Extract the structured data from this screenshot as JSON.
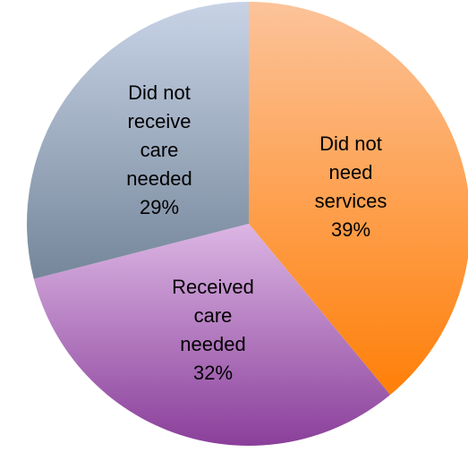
{
  "chart_data": {
    "type": "pie",
    "start_angle_deg": 0,
    "direction": "clockwise",
    "slices": [
      {
        "name": "Did not need services",
        "value": 39,
        "label_lines": [
          "Did not",
          "need",
          "services",
          "39%"
        ],
        "color_light": "#fcc39a",
        "color_dark": "#ff7f08"
      },
      {
        "name": "Received care needed",
        "value": 32,
        "label_lines": [
          "Received",
          "care",
          "needed",
          "32%"
        ],
        "color_light": "#dcb6e4",
        "color_dark": "#8a3f9a"
      },
      {
        "name": "Did not receive care needed",
        "value": 29,
        "label_lines": [
          "Did not",
          "receive",
          "care",
          "needed",
          "29%"
        ],
        "color_light": "#c8d3e6",
        "color_dark": "#75869a"
      }
    ]
  }
}
